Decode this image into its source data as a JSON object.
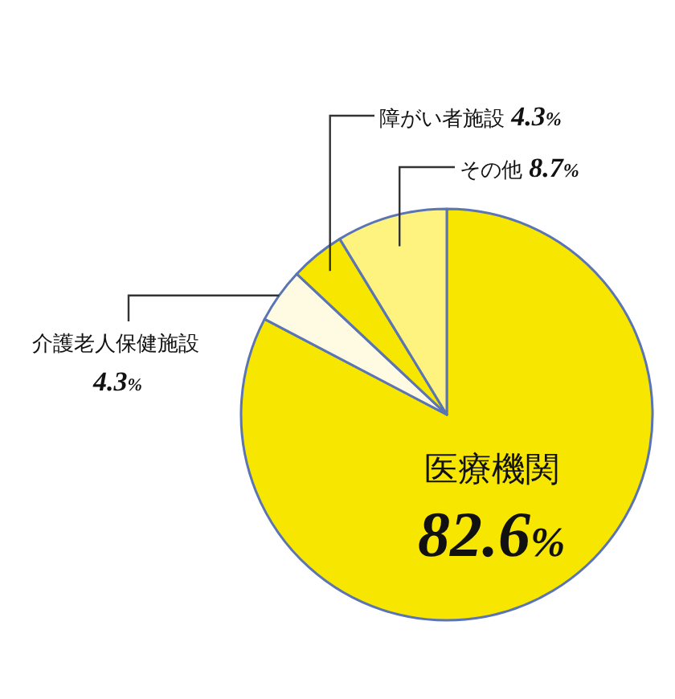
{
  "chart_data": {
    "type": "pie",
    "categories": [
      "医療機関",
      "介護老人保健施設",
      "障がい者施設",
      "その他"
    ],
    "values": [
      82.6,
      4.3,
      4.3,
      8.7
    ],
    "colors": [
      "#f7e600",
      "#fffbe3",
      "#f7e600",
      "#fff37f"
    ],
    "value_labels": [
      "82.6%",
      "4.3%",
      "4.3%",
      "8.7%"
    ]
  }
}
